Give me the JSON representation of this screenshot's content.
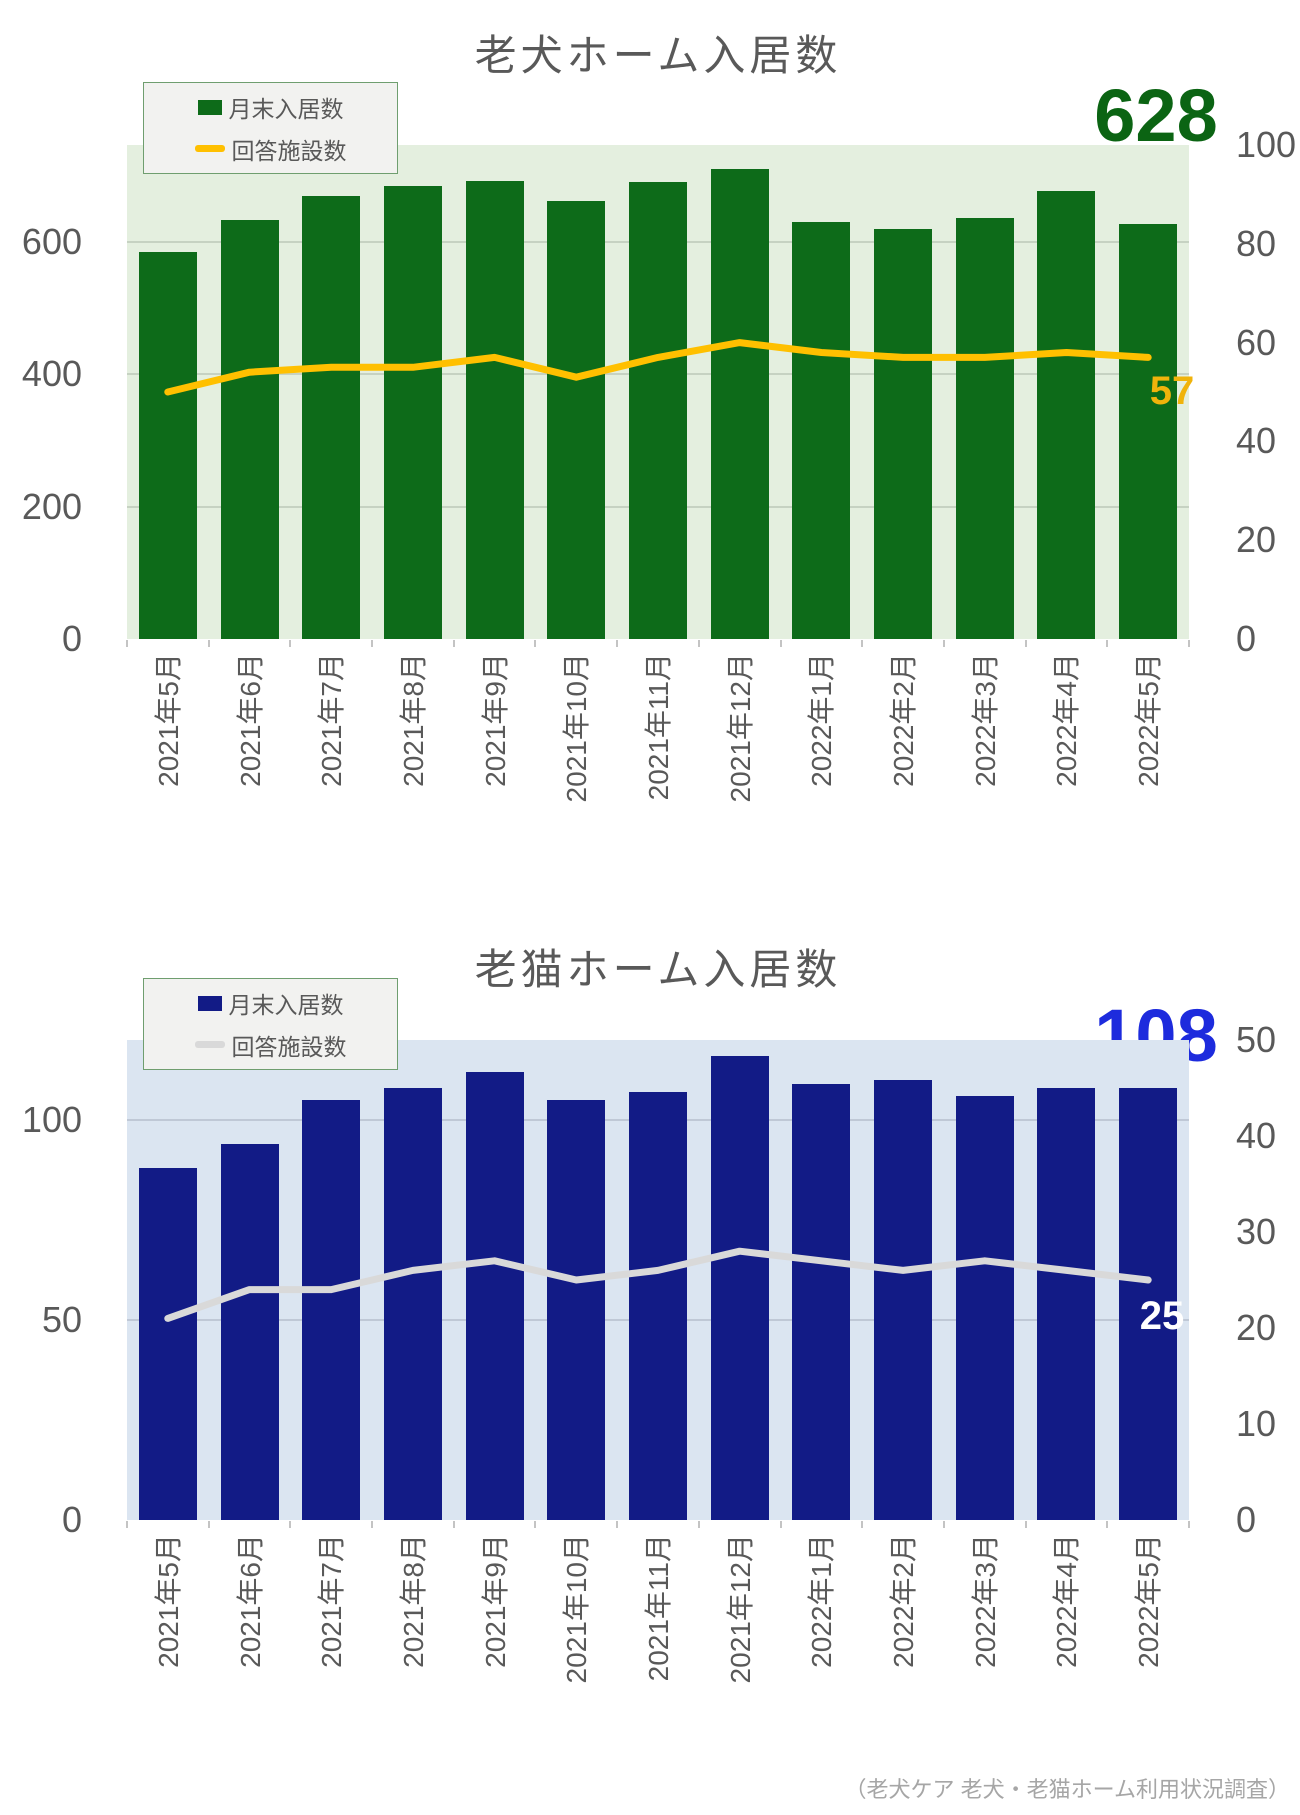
{
  "page": {
    "footnote": "（老犬ケア 老犬・老猫ホーム利用状況調査）",
    "axis_text_color": "#595959",
    "background": "#ffffff"
  },
  "chart_data": [
    {
      "type": "bar",
      "title": "老犬ホーム入居数",
      "categories": [
        "2021年5月",
        "2021年6月",
        "2021年7月",
        "2021年8月",
        "2021年9月",
        "2021年10月",
        "2021年11月",
        "2021年12月",
        "2022年1月",
        "2022年2月",
        "2022年3月",
        "2022年4月",
        "2022年5月"
      ],
      "series": [
        {
          "name": "月末入居数",
          "type": "bar",
          "axis": "left",
          "values": [
            585,
            634,
            670,
            685,
            692,
            663,
            691,
            710,
            630,
            620,
            636,
            678,
            628
          ]
        },
        {
          "name": "回答施設数",
          "type": "line",
          "axis": "right",
          "values": [
            50,
            54,
            55,
            55,
            57,
            53,
            57,
            60,
            58,
            57,
            57,
            58,
            57
          ]
        }
      ],
      "left_axis": {
        "ticks": [
          0,
          200,
          400,
          600
        ],
        "max": 747
      },
      "right_axis": {
        "ticks": [
          0,
          20,
          40,
          60,
          80,
          100
        ],
        "max": 100
      },
      "annotations": {
        "latest_bar_value": "628",
        "latest_line_value": "57"
      },
      "legend_position": "top-left",
      "grid": true,
      "colors": {
        "bar": "#0d6b19",
        "line": "#ffc000",
        "plot_background": "#e4efdf",
        "latest_bar_value_label": "#0b6413",
        "latest_line_value_label": "#f0b30b",
        "gridline": "rgba(89,110,89,0.22)"
      }
    },
    {
      "type": "bar",
      "title": "老猫ホーム入居数",
      "categories": [
        "2021年5月",
        "2021年6月",
        "2021年7月",
        "2021年8月",
        "2021年9月",
        "2021年10月",
        "2021年11月",
        "2021年12月",
        "2022年1月",
        "2022年2月",
        "2022年3月",
        "2022年4月",
        "2022年5月"
      ],
      "series": [
        {
          "name": "月末入居数",
          "type": "bar",
          "axis": "left",
          "values": [
            88,
            94,
            105,
            108,
            112,
            105,
            107,
            116,
            109,
            110,
            106,
            108,
            108
          ]
        },
        {
          "name": "回答施設数",
          "type": "line",
          "axis": "right",
          "values": [
            21,
            24,
            24,
            26,
            27,
            25,
            26,
            28,
            27,
            26,
            27,
            26,
            25
          ]
        }
      ],
      "left_axis": {
        "ticks": [
          0,
          50,
          100
        ],
        "max": 120
      },
      "right_axis": {
        "ticks": [
          0,
          10,
          20,
          30,
          40,
          50
        ],
        "max": 50
      },
      "annotations": {
        "latest_bar_value": "108",
        "latest_line_value": "25"
      },
      "legend_position": "top-left",
      "grid": true,
      "colors": {
        "bar": "#121b86",
        "line": "#d9d9d9",
        "plot_background": "#dbe5f1",
        "latest_bar_value_label": "#1d2bdd",
        "latest_line_value_label": "#ffffff",
        "gridline": "rgba(89,99,120,0.22)"
      }
    }
  ]
}
